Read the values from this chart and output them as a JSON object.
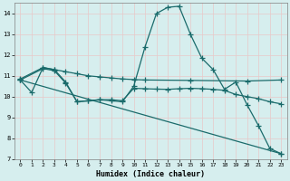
{
  "xlabel": "Humidex (Indice chaleur)",
  "xlim": [
    -0.5,
    23.5
  ],
  "ylim": [
    7,
    14.5
  ],
  "yticks": [
    7,
    8,
    9,
    10,
    11,
    12,
    13,
    14
  ],
  "xticks": [
    0,
    1,
    2,
    3,
    4,
    5,
    6,
    7,
    8,
    9,
    10,
    11,
    12,
    13,
    14,
    15,
    16,
    17,
    18,
    19,
    20,
    21,
    22,
    23
  ],
  "background_color": "#d6eeee",
  "grid_color": "#b8d8d8",
  "line_color": "#1a6b6b",
  "series": [
    {
      "x": [
        0,
        1,
        2,
        3,
        4,
        5,
        6,
        7,
        8,
        9,
        10,
        11,
        12,
        13,
        14,
        15,
        16,
        17,
        18,
        19,
        20,
        21,
        22,
        23
      ],
      "y": [
        10.8,
        10.2,
        11.4,
        11.3,
        10.7,
        9.75,
        9.8,
        9.85,
        9.8,
        9.75,
        10.5,
        12.4,
        14.0,
        14.3,
        14.35,
        13.0,
        11.85,
        11.3,
        10.35,
        10.7,
        9.6,
        8.6,
        7.5,
        7.25
      ]
    },
    {
      "x": [
        0,
        2,
        3,
        4,
        5,
        6,
        7,
        8,
        9,
        10,
        11,
        15,
        20,
        23
      ],
      "y": [
        10.85,
        11.4,
        11.3,
        11.2,
        11.1,
        11.0,
        10.95,
        10.9,
        10.85,
        10.82,
        10.8,
        10.78,
        10.75,
        10.8
      ]
    },
    {
      "x": [
        0,
        2,
        3,
        4,
        5,
        6,
        7,
        8,
        9,
        10,
        11,
        12,
        13,
        14,
        15,
        16,
        17,
        18,
        19,
        20,
        21,
        22,
        23
      ],
      "y": [
        10.8,
        11.35,
        11.25,
        10.65,
        9.75,
        9.8,
        9.85,
        9.85,
        9.8,
        10.4,
        10.38,
        10.36,
        10.35,
        10.38,
        10.4,
        10.38,
        10.35,
        10.3,
        10.1,
        10.0,
        9.9,
        9.75,
        9.65
      ]
    },
    {
      "x": [
        0,
        23
      ],
      "y": [
        10.8,
        7.25
      ]
    }
  ]
}
